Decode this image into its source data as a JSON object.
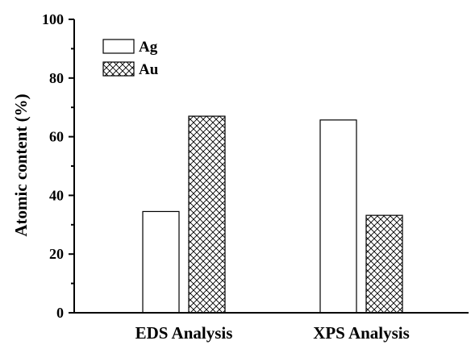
{
  "chart_data": {
    "type": "bar",
    "categories": [
      "EDS Analysis",
      "XPS Analysis"
    ],
    "series": [
      {
        "name": "Ag",
        "values": [
          34.5,
          65.7
        ],
        "fill": "white"
      },
      {
        "name": "Au",
        "values": [
          67.0,
          33.2
        ],
        "fill": "crosshatch"
      }
    ],
    "ylabel": "Atomic content (%)",
    "ylim": [
      0,
      100
    ],
    "yticks": [
      0,
      20,
      40,
      60,
      80,
      100
    ],
    "grid": false,
    "legend_position": "top-left",
    "colors": {
      "axis": "#000000",
      "bar_edge": "#000000",
      "background": "#ffffff"
    }
  }
}
